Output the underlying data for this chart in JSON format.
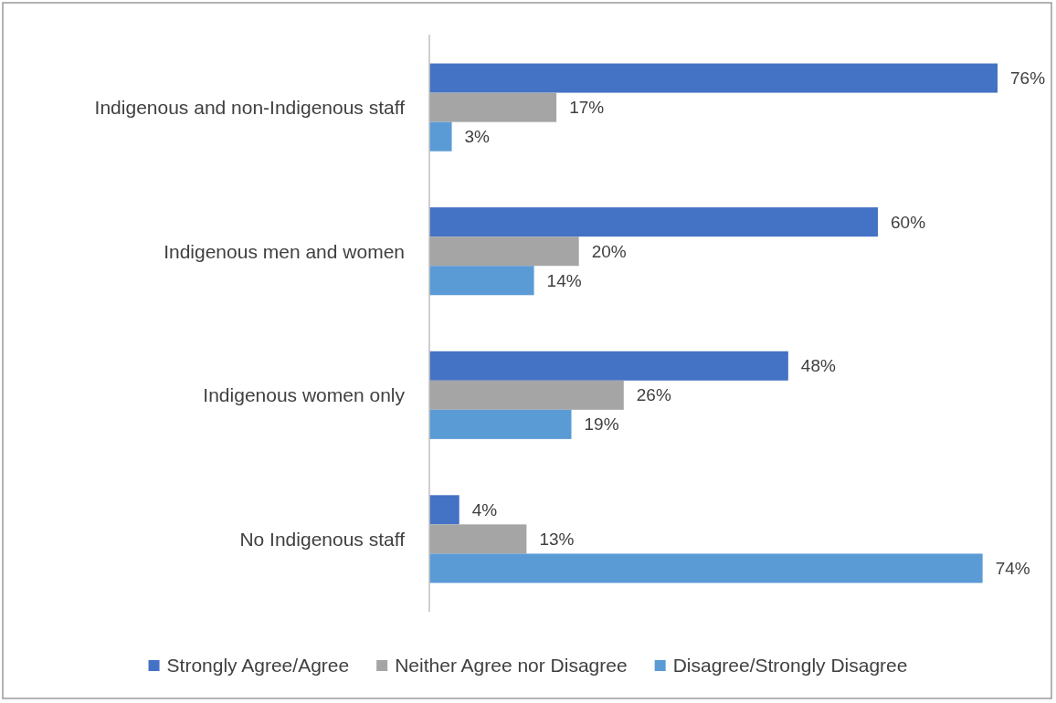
{
  "chart_data": {
    "type": "bar",
    "orientation": "horizontal",
    "categories": [
      "Indigenous and non-Indigenous staff",
      "Indigenous men and women",
      "Indigenous women only",
      "No Indigenous staff"
    ],
    "series": [
      {
        "name": "Strongly Agree/Agree",
        "color": "#4472c4",
        "values": [
          76,
          60,
          48,
          4
        ],
        "value_labels": [
          "76%",
          "60%",
          "48%",
          "4%"
        ]
      },
      {
        "name": "Neither Agree nor Disagree",
        "color": "#a5a5a5",
        "values": [
          17,
          20,
          26,
          13
        ],
        "value_labels": [
          "17%",
          "20%",
          "26%",
          "13%"
        ]
      },
      {
        "name": "Disagree/Strongly Disagree",
        "color": "#5b9bd5",
        "values": [
          3,
          14,
          19,
          74
        ],
        "value_labels": [
          "3%",
          "14%",
          "19%",
          "74%"
        ]
      }
    ],
    "legend": "bottom",
    "tick_labels": "y"
  }
}
